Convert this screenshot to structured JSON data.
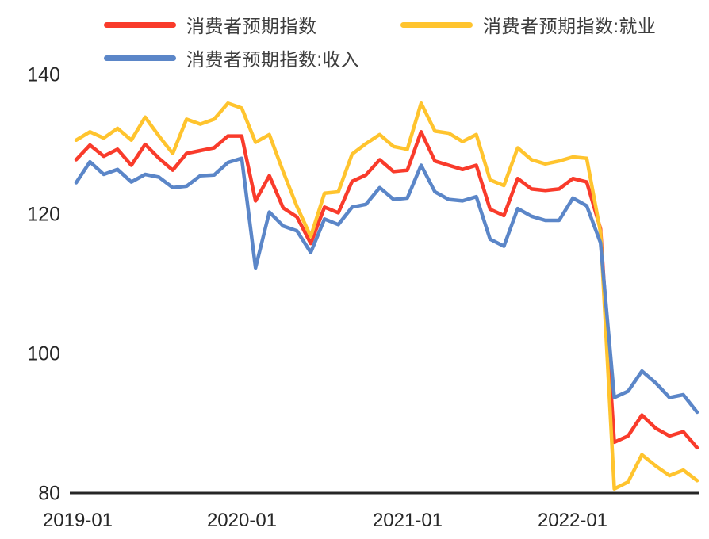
{
  "chart_data": {
    "type": "line",
    "title": "",
    "xlabel": "",
    "ylabel": "",
    "ylim": [
      80,
      140
    ],
    "grid": false,
    "legend_position": "top",
    "x": [
      "2019-01",
      "2019-02",
      "2019-03",
      "2019-04",
      "2019-05",
      "2019-06",
      "2019-07",
      "2019-08",
      "2019-09",
      "2019-10",
      "2019-11",
      "2019-12",
      "2020-01",
      "2020-02",
      "2020-03",
      "2020-04",
      "2020-05",
      "2020-06",
      "2020-07",
      "2020-08",
      "2020-09",
      "2020-10",
      "2020-11",
      "2020-12",
      "2021-01",
      "2021-02",
      "2021-03",
      "2021-04",
      "2021-05",
      "2021-06",
      "2021-07",
      "2021-08",
      "2021-09",
      "2021-10",
      "2021-11",
      "2021-12",
      "2022-01",
      "2022-02",
      "2022-03",
      "2022-04",
      "2022-05",
      "2022-06",
      "2022-07",
      "2022-08",
      "2022-09",
      "2022-10"
    ],
    "series": [
      {
        "name": "消费者预期指数",
        "color": "#f93b2b",
        "values": [
          127.9,
          130.0,
          128.4,
          129.4,
          127.1,
          130.1,
          128.1,
          126.4,
          128.8,
          129.2,
          129.6,
          131.3,
          131.3,
          122.0,
          125.6,
          121.0,
          119.7,
          115.9,
          121.1,
          120.3,
          124.8,
          125.7,
          127.9,
          126.2,
          126.4,
          131.9,
          127.7,
          127.1,
          126.5,
          127.1,
          120.8,
          119.9,
          125.2,
          123.7,
          123.5,
          123.7,
          125.2,
          124.7,
          118.0,
          87.4,
          88.3,
          91.3,
          89.4,
          88.3,
          88.9,
          86.6
        ]
      },
      {
        "name": "消费者预期指数:就业",
        "color": "#ffc42e",
        "values": [
          130.7,
          131.9,
          131.0,
          132.4,
          130.7,
          134.0,
          131.3,
          128.8,
          133.7,
          133.0,
          133.7,
          136.0,
          135.3,
          130.4,
          131.5,
          126.2,
          121.2,
          116.9,
          123.1,
          123.3,
          128.7,
          130.2,
          131.5,
          129.8,
          129.4,
          136.0,
          132.0,
          131.7,
          130.5,
          131.5,
          125.0,
          124.2,
          129.6,
          127.9,
          127.3,
          127.7,
          128.3,
          128.1,
          117.5,
          80.7,
          81.7,
          85.6,
          84.0,
          82.6,
          83.4,
          81.9
        ]
      },
      {
        "name": "消费者预期指数:收入",
        "color": "#5b86c8",
        "values": [
          124.6,
          127.6,
          125.8,
          126.5,
          124.7,
          125.8,
          125.4,
          123.9,
          124.1,
          125.6,
          125.7,
          127.5,
          128.1,
          112.4,
          120.4,
          118.4,
          117.7,
          114.6,
          119.4,
          118.6,
          121.1,
          121.5,
          123.9,
          122.2,
          122.4,
          127.1,
          123.3,
          122.2,
          122.0,
          122.6,
          116.5,
          115.5,
          120.9,
          119.8,
          119.2,
          119.2,
          122.4,
          121.3,
          116.0,
          93.8,
          94.7,
          97.6,
          95.9,
          93.8,
          94.2,
          91.7
        ]
      }
    ],
    "y_ticks": [
      {
        "label": "140",
        "value": 140
      },
      {
        "label": "120",
        "value": 120
      },
      {
        "label": "100",
        "value": 100
      },
      {
        "label": "80",
        "value": 80
      }
    ],
    "x_ticks": [
      {
        "label": "2019-01",
        "month": "2019-01"
      },
      {
        "label": "2020-01",
        "month": "2020-01"
      },
      {
        "label": "2021-01",
        "month": "2021-01"
      },
      {
        "label": "2022-01",
        "month": "2022-01"
      }
    ],
    "axis_color": "#262626"
  }
}
